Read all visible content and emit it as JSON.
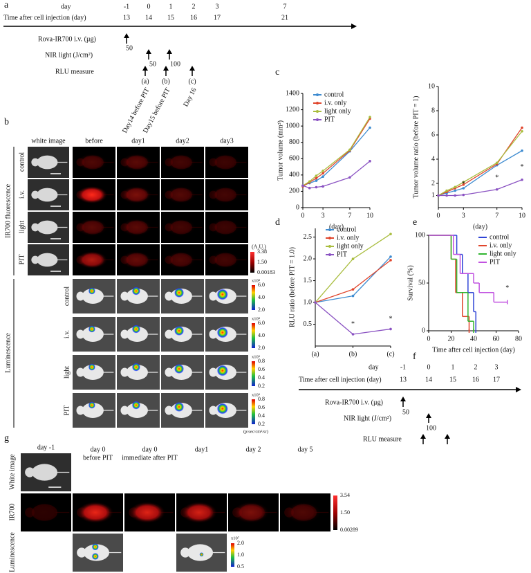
{
  "panel_labels": [
    "a",
    "b",
    "c",
    "d",
    "e",
    "f",
    "g"
  ],
  "timeline_a": {
    "day_label": "day",
    "days": [
      "-1",
      "0",
      "1",
      "2",
      "3",
      "7"
    ],
    "time_label": "Time after cell injection (day)",
    "times": [
      "13",
      "14",
      "15",
      "16",
      "17",
      "21"
    ],
    "rova_label": "Rova-IR700 i.v. (µg)",
    "rova_dose": "50",
    "nir_label": "NIR light (J/cm²)",
    "nir_doses": [
      "50",
      "100"
    ],
    "rlu_label": "RLU measure",
    "rlu_points": [
      "(a)",
      "(b)",
      "(c)"
    ],
    "rlu_notes": [
      "Day14  before PIT",
      "Day15 before PIT",
      "Day 16"
    ]
  },
  "panel_b": {
    "headers": [
      "white image",
      "before",
      "day1",
      "day2",
      "day3"
    ],
    "fluorescence_label": "IR700 fluorescence",
    "fluorescence_rows": [
      "control",
      "i.v.",
      "light",
      "PIT"
    ],
    "fluorescence_scale": {
      "unit": "(A.U.)",
      "ticks": [
        "3.38",
        "1.50",
        "0.00183"
      ]
    },
    "luminescence_label": "Luminescence",
    "luminescence_rows": [
      "control",
      "i.v.",
      "light",
      "PIT"
    ],
    "luminescence_scales": [
      {
        "exponent": "x10⁸",
        "ticks": [
          "6.0",
          "4.0",
          "2.0"
        ]
      },
      {
        "exponent": "x10⁸",
        "ticks": [
          "6.0",
          "4.0",
          "2.0"
        ]
      },
      {
        "exponent": "x10⁹",
        "ticks": [
          "0.8",
          "0.6",
          "0.4",
          "0.2"
        ]
      },
      {
        "exponent": "x10⁹",
        "ticks": [
          "0.8",
          "0.6",
          "0.4",
          "0.2"
        ]
      }
    ],
    "luminescence_unit": "(p/sec/cm²/sr)"
  },
  "chart_data": [
    {
      "type": "line",
      "ylabel": "Tumor volume (mm³)",
      "xlabel": "(day)",
      "x": [
        0,
        1,
        2,
        3,
        7,
        10
      ],
      "xlim": [
        0,
        10
      ],
      "xticks": [
        0,
        3,
        7,
        10
      ],
      "ylim": [
        0,
        1400
      ],
      "yticks": [
        0,
        200,
        400,
        600,
        800,
        1000,
        1200,
        1400
      ],
      "legend": "upper left",
      "series": [
        {
          "name": "control",
          "color": "#3d8bd0",
          "values": [
            270,
            300,
            330,
            380,
            690,
            980
          ]
        },
        {
          "name": "i.v. only",
          "color": "#e0452c",
          "values": [
            260,
            310,
            360,
            420,
            700,
            1090
          ]
        },
        {
          "name": "light only",
          "color": "#a9bd3e",
          "values": [
            270,
            320,
            390,
            450,
            710,
            1110
          ]
        },
        {
          "name": "PIT",
          "color": "#8a52c2",
          "values": [
            270,
            240,
            250,
            260,
            370,
            570
          ]
        }
      ]
    },
    {
      "type": "line",
      "ylabel": "Tumor volume ratio (before PIT = 1)",
      "xlabel": "(day)",
      "x": [
        0,
        1,
        2,
        3,
        7,
        10
      ],
      "xlim": [
        0,
        10
      ],
      "xticks": [
        0,
        3,
        7,
        10
      ],
      "ylim": [
        0,
        10
      ],
      "yticks": [
        1,
        2,
        4,
        6,
        8,
        10
      ],
      "series": [
        {
          "name": "control",
          "color": "#3d8bd0",
          "values": [
            1,
            1.2,
            1.4,
            1.6,
            3.5,
            4.7
          ]
        },
        {
          "name": "i.v. only",
          "color": "#e0452c",
          "values": [
            1,
            1.3,
            1.6,
            1.9,
            3.6,
            6.6
          ]
        },
        {
          "name": "light only",
          "color": "#a9bd3e",
          "values": [
            1,
            1.4,
            1.7,
            2.1,
            3.7,
            6.3
          ]
        },
        {
          "name": "PIT",
          "color": "#8a52c2",
          "values": [
            1,
            1,
            1,
            1.05,
            1.5,
            2.3
          ]
        }
      ],
      "annotations": [
        {
          "text": "*",
          "x": 3,
          "y": 1.6
        },
        {
          "text": "*",
          "x": 7,
          "y": 2.1
        },
        {
          "text": "*",
          "x": 10,
          "y": 3
        }
      ]
    },
    {
      "type": "line",
      "ylabel": "RLU ratio (before PIT = 1.0)",
      "categories": [
        "(a)",
        "(b)",
        "(c)"
      ],
      "ylim": [
        0,
        2.7
      ],
      "yticks": [
        {
          "value": 0.5,
          "label": "0.5"
        },
        {
          "value": 1,
          "label": "1.0"
        },
        {
          "value": 1.5,
          "label": "1.5"
        },
        {
          "value": 2,
          "label": "2.0"
        },
        {
          "value": 2.5,
          "label": "2.5"
        }
      ],
      "legend": "upper left",
      "series": [
        {
          "name": "control",
          "color": "#3d8bd0",
          "values": [
            1,
            1.15,
            2.05
          ]
        },
        {
          "name": "i.v. only",
          "color": "#e0452c",
          "values": [
            1,
            1.3,
            1.97
          ]
        },
        {
          "name": "light only",
          "color": "#a9bd3e",
          "values": [
            1,
            2,
            2.57
          ]
        },
        {
          "name": "PIT",
          "color": "#8a52c2",
          "values": [
            1,
            0.27,
            0.39
          ]
        }
      ],
      "annotations": [
        {
          "text": "*",
          "x": "(b)",
          "y": 0.4
        },
        {
          "text": "*",
          "x": "(c)",
          "y": 0.52
        }
      ]
    },
    {
      "type": "step",
      "ylabel": "Survival (%)",
      "xlabel": "Time after cell injection (day)",
      "xlim": [
        0,
        80
      ],
      "xticks": [
        0,
        20,
        40,
        60,
        80
      ],
      "ylim": [
        0,
        100
      ],
      "yticks": [
        0,
        50,
        100
      ],
      "legend": "upper right",
      "series": [
        {
          "name": "control",
          "color": "#2f44d6",
          "x": [
            0,
            25,
            30,
            35,
            40,
            42
          ],
          "values": [
            100,
            80,
            60,
            40,
            20,
            0
          ]
        },
        {
          "name": "i.v. only",
          "color": "#e0452c",
          "x": [
            0,
            20,
            24,
            30,
            36
          ],
          "values": [
            100,
            75,
            40,
            15,
            0
          ]
        },
        {
          "name": "light only",
          "color": "#2fb52f",
          "x": [
            0,
            20,
            25,
            35,
            40
          ],
          "values": [
            100,
            75,
            40,
            10,
            0
          ]
        },
        {
          "name": "PIT",
          "color": "#c152e0",
          "x": [
            0,
            22,
            28,
            40,
            45,
            58,
            70
          ],
          "values": [
            100,
            80,
            60,
            50,
            40,
            30,
            30
          ]
        }
      ],
      "annotations": [
        {
          "text": "*",
          "x": 70,
          "y": 40
        }
      ]
    }
  ],
  "timeline_f": {
    "day_label": "day",
    "days": [
      "-1",
      "0",
      "1",
      "2",
      "3"
    ],
    "time_label": "Time after cell injection (day)",
    "times": [
      "13",
      "14",
      "15",
      "16",
      "17"
    ],
    "rova_label": "Rova-IR700 i.v. (µg)",
    "rova_dose": "50",
    "nir_label": "NIR light (J/cm²)",
    "nir_dose": "100",
    "rlu_label": "RLU measure"
  },
  "panel_g": {
    "headers": [
      [
        "day -1"
      ],
      [
        "day 0",
        "before PIT"
      ],
      [
        "day 0",
        "immediate after PIT"
      ],
      [
        "day1"
      ],
      [
        "day 2"
      ],
      [
        "day 5"
      ]
    ],
    "rows": [
      "White image",
      "IR700",
      "Luminescence"
    ],
    "ir700_scale": {
      "ticks": [
        "3.54",
        "1.50",
        "0.00289"
      ]
    },
    "luminescence_scale": {
      "exponent": "x10⁷",
      "ticks": [
        "2.0",
        "1.0",
        "0.5"
      ]
    }
  }
}
